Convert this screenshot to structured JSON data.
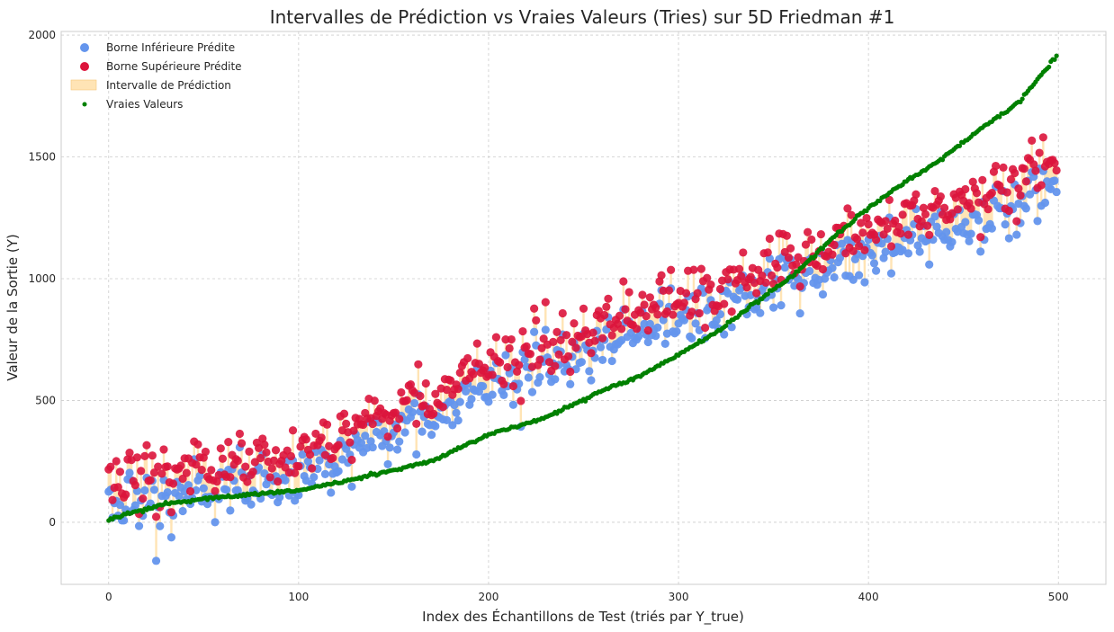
{
  "chart_data": {
    "type": "scatter",
    "title": "Intervalles de Prédiction vs Vraies Valeurs (Tries) sur 5D Friedman #1",
    "xlabel": "Index des Échantillons de Test (triés par Y_true)",
    "ylabel": "Valeur de la Sortie (Y)",
    "xlim": [
      -25,
      525
    ],
    "ylim": [
      -255,
      2015
    ],
    "xticks": [
      0,
      100,
      200,
      300,
      400,
      500
    ],
    "yticks": [
      0,
      500,
      1000,
      1500,
      2000
    ],
    "grid": true,
    "legend_position": "top-left",
    "n_points": 500,
    "true_values_knots": {
      "x": [
        0,
        10,
        30,
        60,
        100,
        130,
        150,
        170,
        200,
        230,
        260,
        280,
        300,
        320,
        340,
        360,
        380,
        400,
        420,
        440,
        460,
        480,
        499
      ],
      "y": [
        10,
        35,
        75,
        105,
        130,
        180,
        215,
        250,
        360,
        430,
        540,
        600,
        690,
        780,
        900,
        1010,
        1160,
        1290,
        1400,
        1500,
        1620,
        1730,
        1915
      ]
    },
    "prediction_center_knots": {
      "x": [
        0,
        50,
        100,
        150,
        200,
        250,
        300,
        350,
        400,
        450,
        499
      ],
      "y": [
        120,
        190,
        230,
        420,
        600,
        730,
        880,
        1000,
        1130,
        1270,
        1420
      ]
    },
    "interval_width_knots": {
      "x": [
        0,
        100,
        200,
        300,
        400,
        499
      ],
      "y": [
        90,
        90,
        80,
        80,
        90,
        110
      ]
    },
    "series": [
      {
        "name": "Borne Inférieure Prédite",
        "color": "#6495ed",
        "marker": "circle"
      },
      {
        "name": "Borne Supérieure Prédite",
        "color": "#dc143c",
        "marker": "circle"
      },
      {
        "name": "Intervalle de Prédiction",
        "color": "#ffe4b5",
        "marker": "band"
      },
      {
        "name": "Vraies Valeurs",
        "color": "#008000",
        "marker": "small-circle"
      }
    ]
  }
}
